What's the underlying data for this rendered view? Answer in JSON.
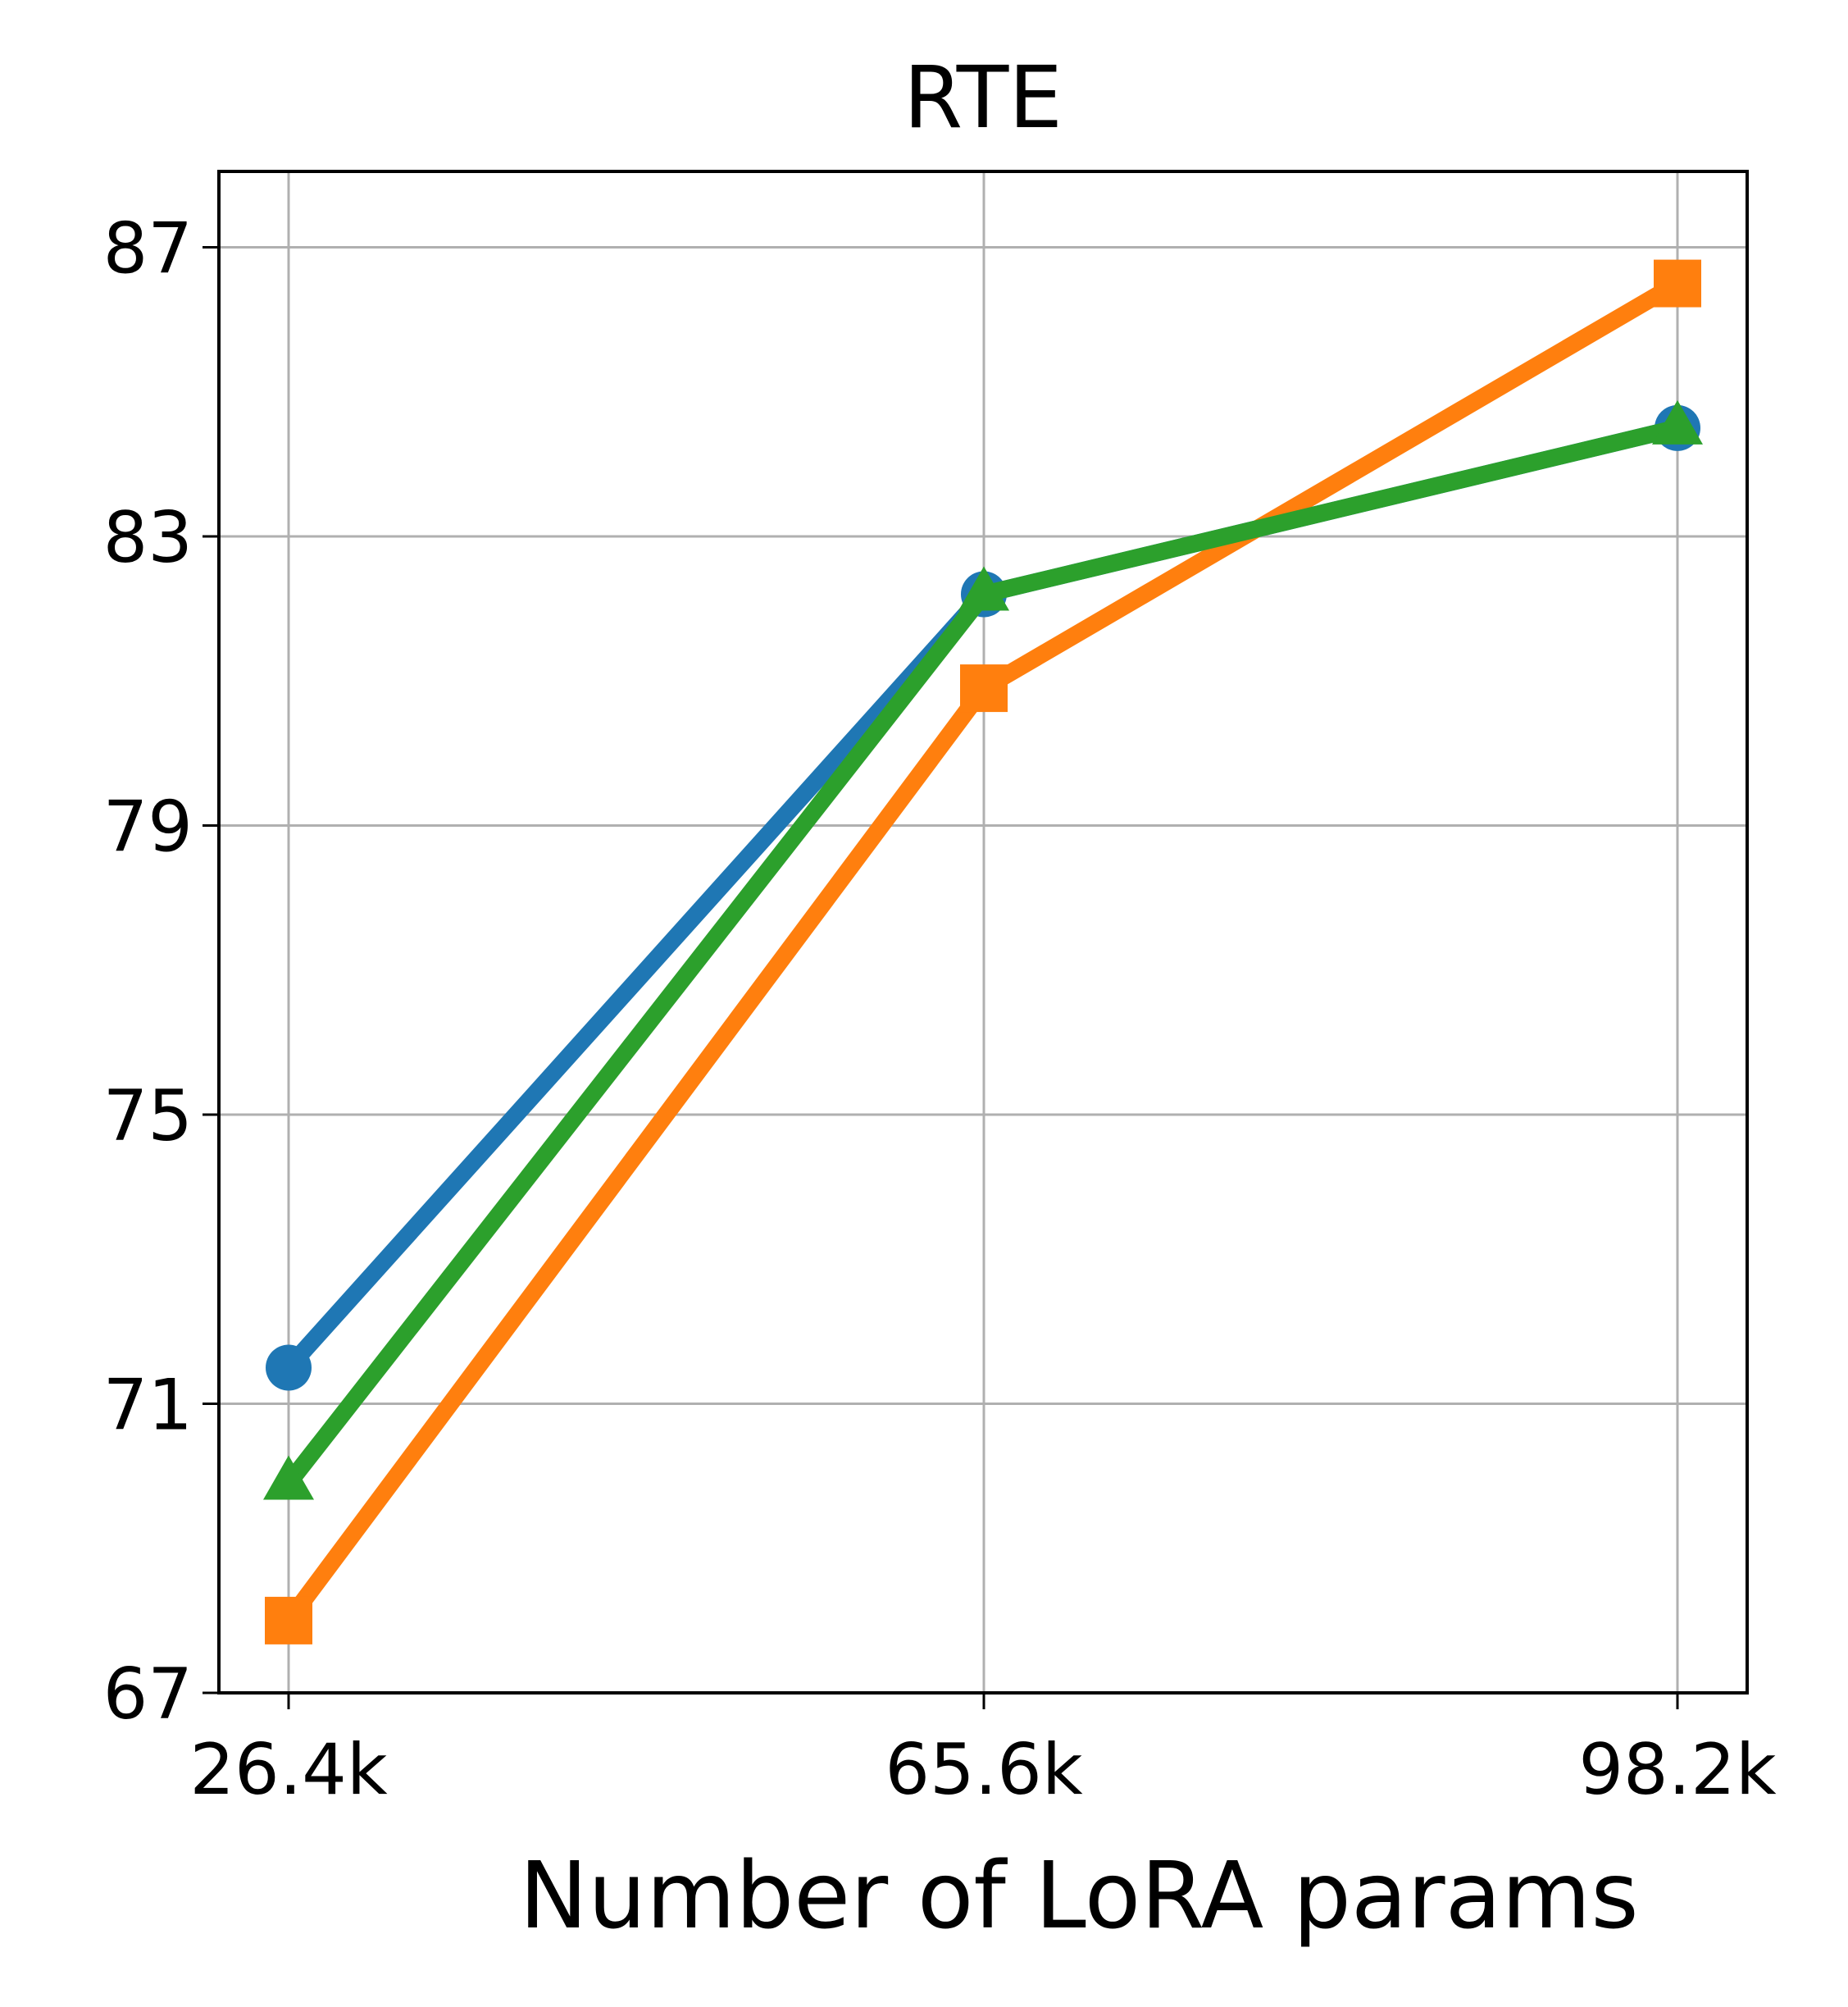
{
  "chart_data": {
    "type": "line",
    "title": "RTE",
    "xlabel": "Number of LoRA params",
    "ylabel": "",
    "categories": [
      "26.4k",
      "65.6k",
      "98.2k"
    ],
    "yticks": [
      67,
      71,
      75,
      79,
      83,
      87
    ],
    "ylim": [
      67,
      88.05
    ],
    "grid": true,
    "series": [
      {
        "marker": "circle",
        "color": "#1f77b4",
        "values": [
          71.5,
          82.2,
          84.5
        ]
      },
      {
        "marker": "square",
        "color": "#ff7f0e",
        "values": [
          68.0,
          80.9,
          86.5
        ]
      },
      {
        "marker": "triangle",
        "color": "#2ca02c",
        "values": [
          69.9,
          82.2,
          84.5
        ]
      }
    ]
  }
}
